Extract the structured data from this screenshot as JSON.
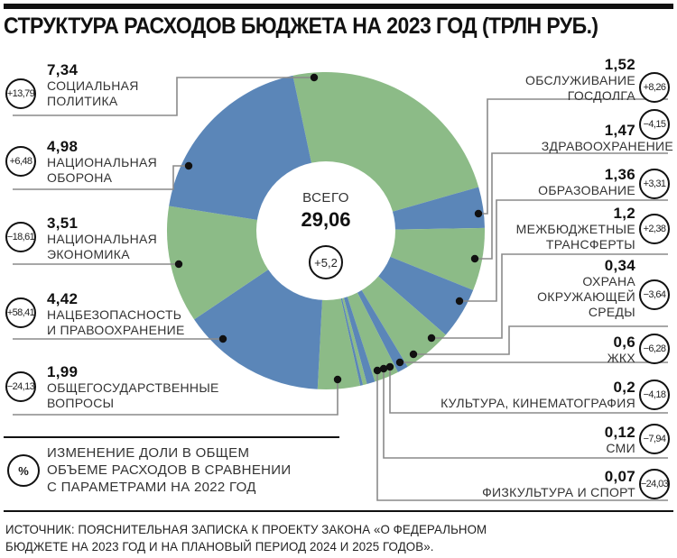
{
  "title": "СТРУКТУРА РАСХОДОВ БЮДЖЕТА НА 2023 ГОД (ТРЛН РУБ.)",
  "center": {
    "label": "ВСЕГО",
    "total": "29,06",
    "change": "+5,2"
  },
  "colors": {
    "blue": "#5b86b8",
    "green": "#8cbb87",
    "line": "#8a8a8a",
    "dot": "#111111"
  },
  "left_items": [
    {
      "value": "7,34",
      "line1": "СОЦИАЛЬНАЯ",
      "line2": "ПОЛИТИКА",
      "change": "+13,79"
    },
    {
      "value": "4,98",
      "line1": "НАЦИОНАЛЬНАЯ",
      "line2": "ОБОРОНА",
      "change": "+6,48"
    },
    {
      "value": "3,51",
      "line1": "НАЦИОНАЛЬНАЯ",
      "line2": "ЭКОНОМИКА",
      "change": "−18,61"
    },
    {
      "value": "4,42",
      "line1": "НАЦБЕЗОПАСНОСТЬ",
      "line2": "И ПРАВООХРАНЕНИЕ",
      "change": "+58,41"
    },
    {
      "value": "1,99",
      "line1": "ОБЩЕГОСУДАРСТВЕННЫЕ",
      "line2": "ВОПРОСЫ",
      "change": "−24,13"
    }
  ],
  "right_items": [
    {
      "value": "1,52",
      "line1": "ОБСЛУЖИВАНИЕ",
      "line2": "ГОСДОЛГА",
      "change": "+8,26"
    },
    {
      "value": "1,47",
      "line1": "ЗДРАВООХРАНЕНИЕ",
      "line2": "",
      "change": "−4,15"
    },
    {
      "value": "1,36",
      "line1": "ОБРАЗОВАНИЕ",
      "line2": "",
      "change": "+3,31"
    },
    {
      "value": "1,2",
      "line1": "МЕЖБЮДЖЕТНЫЕ",
      "line2": "ТРАНСФЕРТЫ",
      "change": "+2,38"
    },
    {
      "value": "0,34",
      "line1": "ОХРАНА",
      "line2": "ОКРУЖАЮЩЕЙ",
      "line3": "СРЕДЫ",
      "change": "−3,64"
    },
    {
      "value": "0,6",
      "line1": "ЖКХ",
      "line2": "",
      "change": "−6,28"
    },
    {
      "value": "0,2",
      "line1": "КУЛЬТУРА, КИНЕМАТОГРАФИЯ",
      "line2": "",
      "change": "−4,18"
    },
    {
      "value": "0,12",
      "line1": "СМИ",
      "line2": "",
      "change": "−7,94"
    },
    {
      "value": "0,07",
      "line1": "ФИЗКУЛЬТУРА И СПОРТ",
      "line2": "",
      "change": "−24,03"
    }
  ],
  "legend": {
    "symbol": "%",
    "line1": "ИЗМЕНЕНИЕ ДОЛИ В ОБЩЕМ",
    "line2": "ОБЪЕМЕ РАСХОДОВ В СРАВНЕНИИ",
    "line3": "С ПАРАМЕТРАМИ НА 2022 ГОД"
  },
  "source": {
    "line1": "ИСТОЧНИК: ПОЯСНИТЕЛЬНАЯ ЗАПИСКА К ПРОЕКТУ ЗАКОНА «О ФЕДЕРАЛЬНОМ",
    "line2": "БЮДЖЕТЕ НА 2023 ГОД И НА ПЛАНОВЫЙ ПЕРИОД 2024 И 2025 ГОДОВ»."
  },
  "chart_data": {
    "type": "pie",
    "subtype": "donut",
    "title": "Структура расходов бюджета на 2023 год (трлн руб.)",
    "total": 29.06,
    "total_change_pct": 5.2,
    "categories": [
      "Социальная политика",
      "Обслуживание госдолга",
      "Здравоохранение",
      "Образование",
      "Межбюджетные трансферты",
      "Охрана окружающей среды",
      "ЖКХ",
      "Культура, кинематография",
      "СМИ",
      "Физкультура и спорт",
      "Общегосударственные вопросы",
      "Нацбезопасность и правоохранение",
      "Национальная экономика",
      "Национальная оборона"
    ],
    "values": [
      7.34,
      1.52,
      1.47,
      1.36,
      1.2,
      0.34,
      0.6,
      0.2,
      0.12,
      0.07,
      1.99,
      4.42,
      3.51,
      4.98
    ],
    "change_pct": [
      13.79,
      8.26,
      -4.15,
      3.31,
      2.38,
      -3.64,
      -6.28,
      -4.18,
      -7.94,
      -24.03,
      -24.13,
      58.41,
      -18.61,
      6.48
    ],
    "slice_colors": [
      "green",
      "blue",
      "green",
      "blue",
      "green",
      "blue",
      "green",
      "blue",
      "green",
      "blue",
      "green",
      "blue",
      "green",
      "blue"
    ],
    "legend": "Изменение доли в общем объеме расходов в сравнении с параметрами на 2022 год (%)",
    "source": "Пояснительная записка к проекту закона «О федеральном бюджете на 2023 год и на плановый период 2024 и 2025 годов»"
  }
}
